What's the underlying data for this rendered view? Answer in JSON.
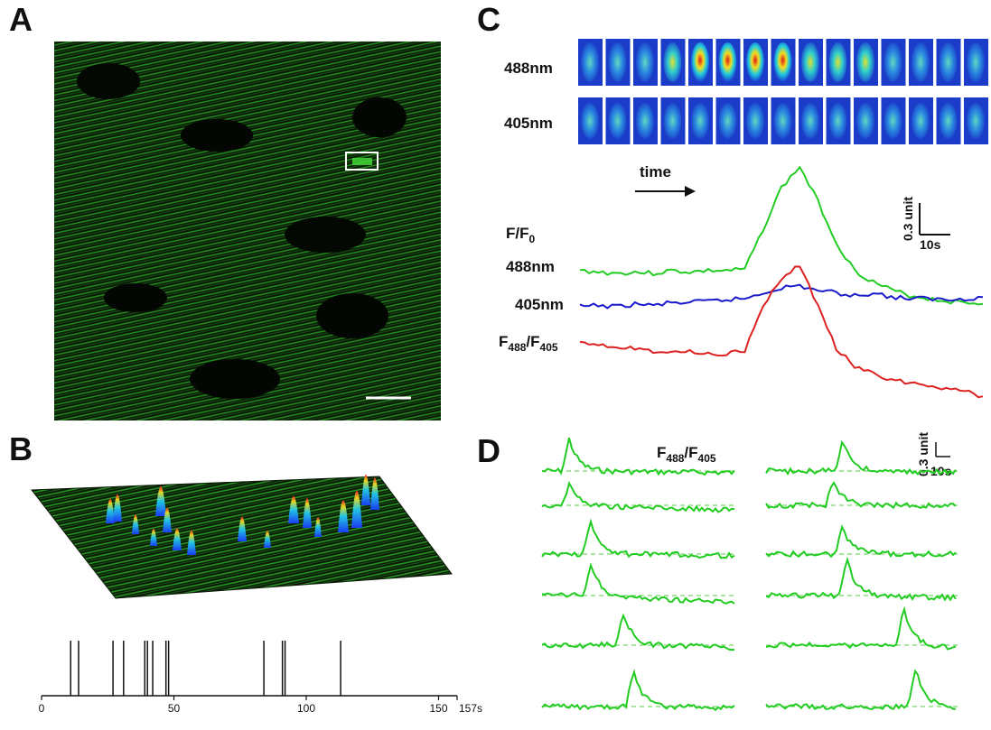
{
  "panels": {
    "a": {
      "letter": "A"
    },
    "b": {
      "letter": "B",
      "axis_ticks": [
        "0",
        "50",
        "100",
        "150"
      ],
      "axis_end_label": "157s"
    },
    "c": {
      "letter": "C",
      "row_label_top": "488nm",
      "row_label_bottom": "405nm",
      "time_label": "time",
      "scale_y": "0.3 unit",
      "scale_x": "10s",
      "trace_label_f": "F/F",
      "trace_label_f_sub": "0",
      "trace_label_488": "488nm",
      "trace_label_405": "405nm",
      "ratio_main": "F",
      "ratio_sub1": "488",
      "ratio_slash": "/F",
      "ratio_sub2": "405"
    },
    "d": {
      "letter": "D",
      "ratio_main": "F",
      "ratio_sub1": "488",
      "ratio_slash": "/F",
      "ratio_sub2": "405",
      "scale_y": "0.3 unit",
      "scale_x": "10s"
    }
  },
  "chart_data": [
    {
      "type": "raster",
      "panel": "B",
      "xlim": [
        0,
        157
      ],
      "x_ticks": [
        0,
        50,
        100,
        150
      ],
      "xlabel": "",
      "events_s": [
        11,
        14,
        27,
        31,
        39,
        40,
        42,
        47,
        48,
        84,
        91,
        92,
        113
      ]
    },
    {
      "type": "line",
      "panel": "C",
      "series": [
        {
          "name": "488nm",
          "color": "#22cc22",
          "values": [
            1.0,
            0.99,
            0.98,
            0.99,
            0.98,
            1.0,
            0.99,
            1.0,
            1.0,
            1.01,
            1.3,
            1.6,
            1.75,
            1.5,
            1.2,
            1.0,
            0.92,
            0.86,
            0.82,
            0.8,
            0.78,
            0.77,
            0.76
          ]
        },
        {
          "name": "405nm",
          "color": "#1a1acc",
          "values": [
            1.0,
            1.01,
            1.0,
            1.02,
            1.01,
            1.03,
            1.03,
            1.04,
            1.05,
            1.06,
            1.1,
            1.14,
            1.15,
            1.12,
            1.1,
            1.08,
            1.1,
            1.07,
            1.06,
            1.06,
            1.05,
            1.06,
            1.07
          ]
        },
        {
          "name": "F488/F405",
          "color": "#dd2222",
          "values": [
            1.0,
            0.98,
            0.96,
            0.95,
            0.93,
            0.93,
            0.92,
            0.91,
            0.91,
            0.93,
            1.25,
            1.45,
            1.55,
            1.25,
            0.95,
            0.82,
            0.76,
            0.72,
            0.7,
            0.68,
            0.66,
            0.64,
            0.6
          ]
        }
      ]
    },
    {
      "type": "line",
      "panel": "D",
      "traces": [
        {
          "col": 0,
          "row": 0,
          "peak": 0.14,
          "amp": 0.3,
          "baseline": 0.0,
          "decay": -0.05
        },
        {
          "col": 0,
          "row": 1,
          "peak": 0.14,
          "amp": 0.2,
          "baseline": 0.05,
          "decay": -0.15
        },
        {
          "col": 0,
          "row": 2,
          "peak": 0.25,
          "amp": 0.3,
          "baseline": 0.0,
          "decay": -0.05
        },
        {
          "col": 0,
          "row": 3,
          "peak": 0.25,
          "amp": 0.3,
          "baseline": 0.05,
          "decay": -0.25
        },
        {
          "col": 0,
          "row": 4,
          "peak": 0.42,
          "amp": 0.3,
          "baseline": 0.0,
          "decay": -0.1
        },
        {
          "col": 0,
          "row": 5,
          "peak": 0.47,
          "amp": 0.35,
          "baseline": 0.0,
          "decay": -0.05
        },
        {
          "col": 1,
          "row": 0,
          "peak": 0.4,
          "amp": 0.3,
          "baseline": 0.05,
          "decay": -0.05
        },
        {
          "col": 1,
          "row": 1,
          "peak": 0.35,
          "amp": 0.25,
          "baseline": 0.0,
          "decay": 0.0
        },
        {
          "col": 1,
          "row": 2,
          "peak": 0.4,
          "amp": 0.25,
          "baseline": 0.05,
          "decay": 0.0
        },
        {
          "col": 1,
          "row": 3,
          "peak": 0.42,
          "amp": 0.35,
          "baseline": 0.0,
          "decay": -0.1
        },
        {
          "col": 1,
          "row": 4,
          "peak": 0.72,
          "amp": 0.35,
          "baseline": 0.05,
          "decay": -0.25
        },
        {
          "col": 1,
          "row": 5,
          "peak": 0.78,
          "amp": 0.35,
          "baseline": 0.0,
          "decay": -0.1
        }
      ]
    }
  ]
}
